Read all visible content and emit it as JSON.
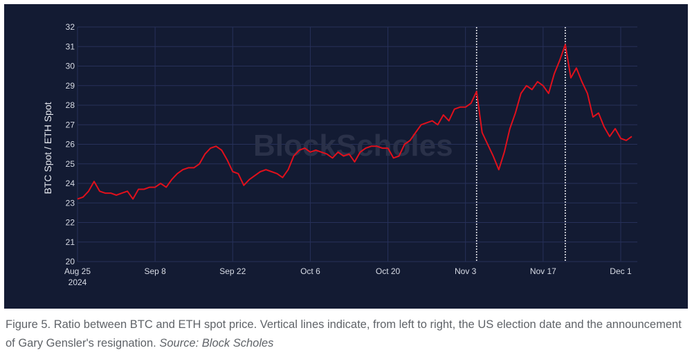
{
  "chart_data": {
    "type": "line",
    "title": "",
    "ylabel": "BTC Spot / ETH Spot",
    "xlabel": "",
    "ylim": [
      20,
      32
    ],
    "yticks": [
      20,
      21,
      22,
      23,
      24,
      25,
      26,
      27,
      28,
      29,
      30,
      31,
      32
    ],
    "xlim": [
      "2024-08-25",
      "2024-12-04"
    ],
    "xticks": [
      {
        "date": "2024-08-25",
        "label": "Aug 25",
        "sublabel": "2024"
      },
      {
        "date": "2024-09-08",
        "label": "Sep 8",
        "sublabel": ""
      },
      {
        "date": "2024-09-22",
        "label": "Sep 22",
        "sublabel": ""
      },
      {
        "date": "2024-10-06",
        "label": "Oct 6",
        "sublabel": ""
      },
      {
        "date": "2024-10-20",
        "label": "Oct 20",
        "sublabel": ""
      },
      {
        "date": "2024-11-03",
        "label": "Nov 3",
        "sublabel": ""
      },
      {
        "date": "2024-11-17",
        "label": "Nov 17",
        "sublabel": ""
      },
      {
        "date": "2024-12-01",
        "label": "Dec 1",
        "sublabel": ""
      }
    ],
    "grid": true,
    "line_color": "#e0101c",
    "vertical_lines": [
      "2024-11-05",
      "2024-11-21"
    ],
    "watermark": "BlockScholes",
    "series": [
      {
        "name": "",
        "points": [
          [
            "2024-08-25",
            23.2
          ],
          [
            "2024-08-26",
            23.3
          ],
          [
            "2024-08-27",
            23.6
          ],
          [
            "2024-08-28",
            24.1
          ],
          [
            "2024-08-29",
            23.6
          ],
          [
            "2024-08-30",
            23.5
          ],
          [
            "2024-08-31",
            23.5
          ],
          [
            "2024-09-01",
            23.4
          ],
          [
            "2024-09-02",
            23.5
          ],
          [
            "2024-09-03",
            23.6
          ],
          [
            "2024-09-04",
            23.2
          ],
          [
            "2024-09-05",
            23.7
          ],
          [
            "2024-09-06",
            23.7
          ],
          [
            "2024-09-07",
            23.8
          ],
          [
            "2024-09-08",
            23.8
          ],
          [
            "2024-09-09",
            24.0
          ],
          [
            "2024-09-10",
            23.8
          ],
          [
            "2024-09-11",
            24.2
          ],
          [
            "2024-09-12",
            24.5
          ],
          [
            "2024-09-13",
            24.7
          ],
          [
            "2024-09-14",
            24.8
          ],
          [
            "2024-09-15",
            24.8
          ],
          [
            "2024-09-16",
            25.0
          ],
          [
            "2024-09-17",
            25.5
          ],
          [
            "2024-09-18",
            25.8
          ],
          [
            "2024-09-19",
            25.9
          ],
          [
            "2024-09-20",
            25.7
          ],
          [
            "2024-09-21",
            25.2
          ],
          [
            "2024-09-22",
            24.6
          ],
          [
            "2024-09-23",
            24.5
          ],
          [
            "2024-09-24",
            23.9
          ],
          [
            "2024-09-25",
            24.2
          ],
          [
            "2024-09-26",
            24.4
          ],
          [
            "2024-09-27",
            24.6
          ],
          [
            "2024-09-28",
            24.7
          ],
          [
            "2024-09-29",
            24.6
          ],
          [
            "2024-09-30",
            24.5
          ],
          [
            "2024-10-01",
            24.3
          ],
          [
            "2024-10-02",
            24.7
          ],
          [
            "2024-10-03",
            25.4
          ],
          [
            "2024-10-04",
            25.7
          ],
          [
            "2024-10-05",
            25.8
          ],
          [
            "2024-10-06",
            25.6
          ],
          [
            "2024-10-07",
            25.7
          ],
          [
            "2024-10-08",
            25.6
          ],
          [
            "2024-10-09",
            25.5
          ],
          [
            "2024-10-10",
            25.3
          ],
          [
            "2024-10-11",
            25.6
          ],
          [
            "2024-10-12",
            25.4
          ],
          [
            "2024-10-13",
            25.5
          ],
          [
            "2024-10-14",
            25.1
          ],
          [
            "2024-10-15",
            25.6
          ],
          [
            "2024-10-16",
            25.8
          ],
          [
            "2024-10-17",
            25.9
          ],
          [
            "2024-10-18",
            25.9
          ],
          [
            "2024-10-19",
            25.8
          ],
          [
            "2024-10-20",
            25.8
          ],
          [
            "2024-10-21",
            25.3
          ],
          [
            "2024-10-22",
            25.4
          ],
          [
            "2024-10-23",
            26.0
          ],
          [
            "2024-10-24",
            26.2
          ],
          [
            "2024-10-25",
            26.6
          ],
          [
            "2024-10-26",
            27.0
          ],
          [
            "2024-10-27",
            27.1
          ],
          [
            "2024-10-28",
            27.2
          ],
          [
            "2024-10-29",
            27.0
          ],
          [
            "2024-10-30",
            27.5
          ],
          [
            "2024-10-31",
            27.2
          ],
          [
            "2024-11-01",
            27.8
          ],
          [
            "2024-11-02",
            27.9
          ],
          [
            "2024-11-03",
            27.9
          ],
          [
            "2024-11-04",
            28.1
          ],
          [
            "2024-11-05",
            28.7
          ],
          [
            "2024-11-06",
            26.6
          ],
          [
            "2024-11-07",
            26.0
          ],
          [
            "2024-11-08",
            25.4
          ],
          [
            "2024-11-09",
            24.7
          ],
          [
            "2024-11-10",
            25.6
          ],
          [
            "2024-11-11",
            26.8
          ],
          [
            "2024-11-12",
            27.6
          ],
          [
            "2024-11-13",
            28.6
          ],
          [
            "2024-11-14",
            29.0
          ],
          [
            "2024-11-15",
            28.8
          ],
          [
            "2024-11-16",
            29.2
          ],
          [
            "2024-11-17",
            29.0
          ],
          [
            "2024-11-18",
            28.6
          ],
          [
            "2024-11-19",
            29.6
          ],
          [
            "2024-11-20",
            30.3
          ],
          [
            "2024-11-21",
            31.1
          ],
          [
            "2024-11-22",
            29.4
          ],
          [
            "2024-11-23",
            29.9
          ],
          [
            "2024-11-24",
            29.2
          ],
          [
            "2024-11-25",
            28.6
          ],
          [
            "2024-11-26",
            27.4
          ],
          [
            "2024-11-27",
            27.6
          ],
          [
            "2024-11-28",
            26.9
          ],
          [
            "2024-11-29",
            26.4
          ],
          [
            "2024-11-30",
            26.8
          ],
          [
            "2024-12-01",
            26.3
          ],
          [
            "2024-12-02",
            26.2
          ],
          [
            "2024-12-03",
            26.4
          ]
        ]
      }
    ]
  },
  "caption": {
    "text": "Figure 5. Ratio between BTC and ETH spot price. Vertical lines indicate, from left to right, the US election date and the announcement of Gary Gensler's resignation. ",
    "source": "Source: Block Scholes"
  }
}
